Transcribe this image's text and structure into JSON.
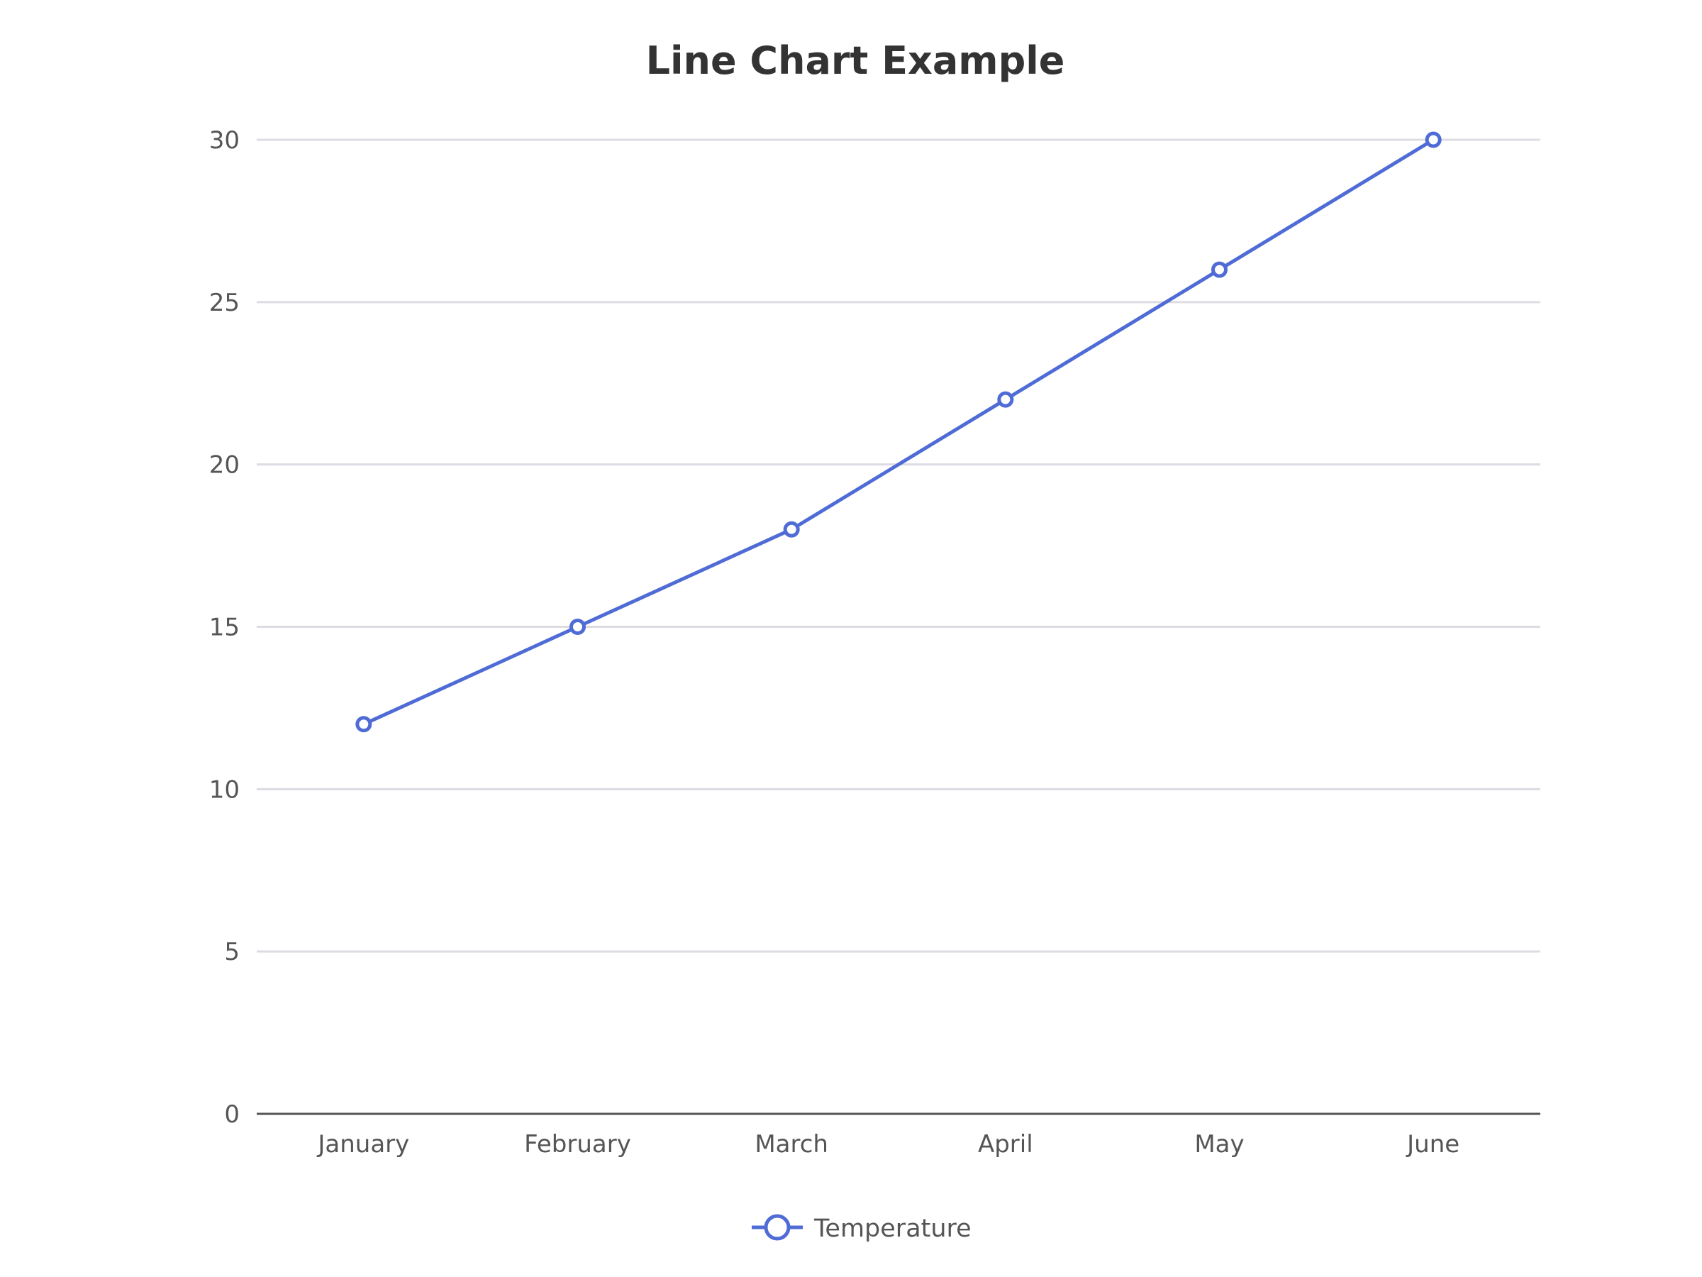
{
  "chart_data": {
    "type": "line",
    "title": "Line Chart Example",
    "xlabel": "",
    "ylabel": "",
    "categories": [
      "January",
      "February",
      "March",
      "April",
      "May",
      "June"
    ],
    "series": [
      {
        "name": "Temperature",
        "values": [
          12,
          15,
          18,
          22,
          26,
          30
        ],
        "color": "#4f6bd6"
      }
    ],
    "ylim": [
      0,
      30
    ],
    "yticks": [
      0,
      5,
      10,
      15,
      20,
      25,
      30
    ],
    "grid": true,
    "legend": "bottom-center"
  }
}
